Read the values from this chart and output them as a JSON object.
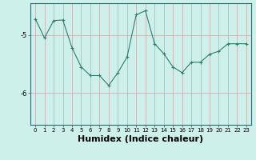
{
  "x": [
    0,
    1,
    2,
    3,
    4,
    5,
    6,
    7,
    8,
    9,
    10,
    11,
    12,
    13,
    14,
    15,
    16,
    17,
    18,
    19,
    20,
    21,
    22,
    23
  ],
  "y": [
    -4.72,
    -5.05,
    -4.75,
    -4.74,
    -5.22,
    -5.55,
    -5.7,
    -5.7,
    -5.87,
    -5.65,
    -5.38,
    -4.65,
    -4.58,
    -5.15,
    -5.32,
    -5.55,
    -5.65,
    -5.47,
    -5.47,
    -5.33,
    -5.28,
    -5.15,
    -5.15,
    -5.15
  ],
  "line_color": "#2e7d6e",
  "marker": "+",
  "markersize": 3,
  "linewidth": 0.8,
  "bg_color": "#cef0ea",
  "grid_color": "#c4a8a8",
  "xlabel": "Humidex (Indice chaleur)",
  "xlabel_fontsize": 8,
  "yticks": [
    -6,
    -5
  ],
  "ylim": [
    -6.55,
    -4.45
  ],
  "xlim": [
    -0.5,
    23.5
  ],
  "tick_fontsize": 6,
  "spine_color": "#336666"
}
